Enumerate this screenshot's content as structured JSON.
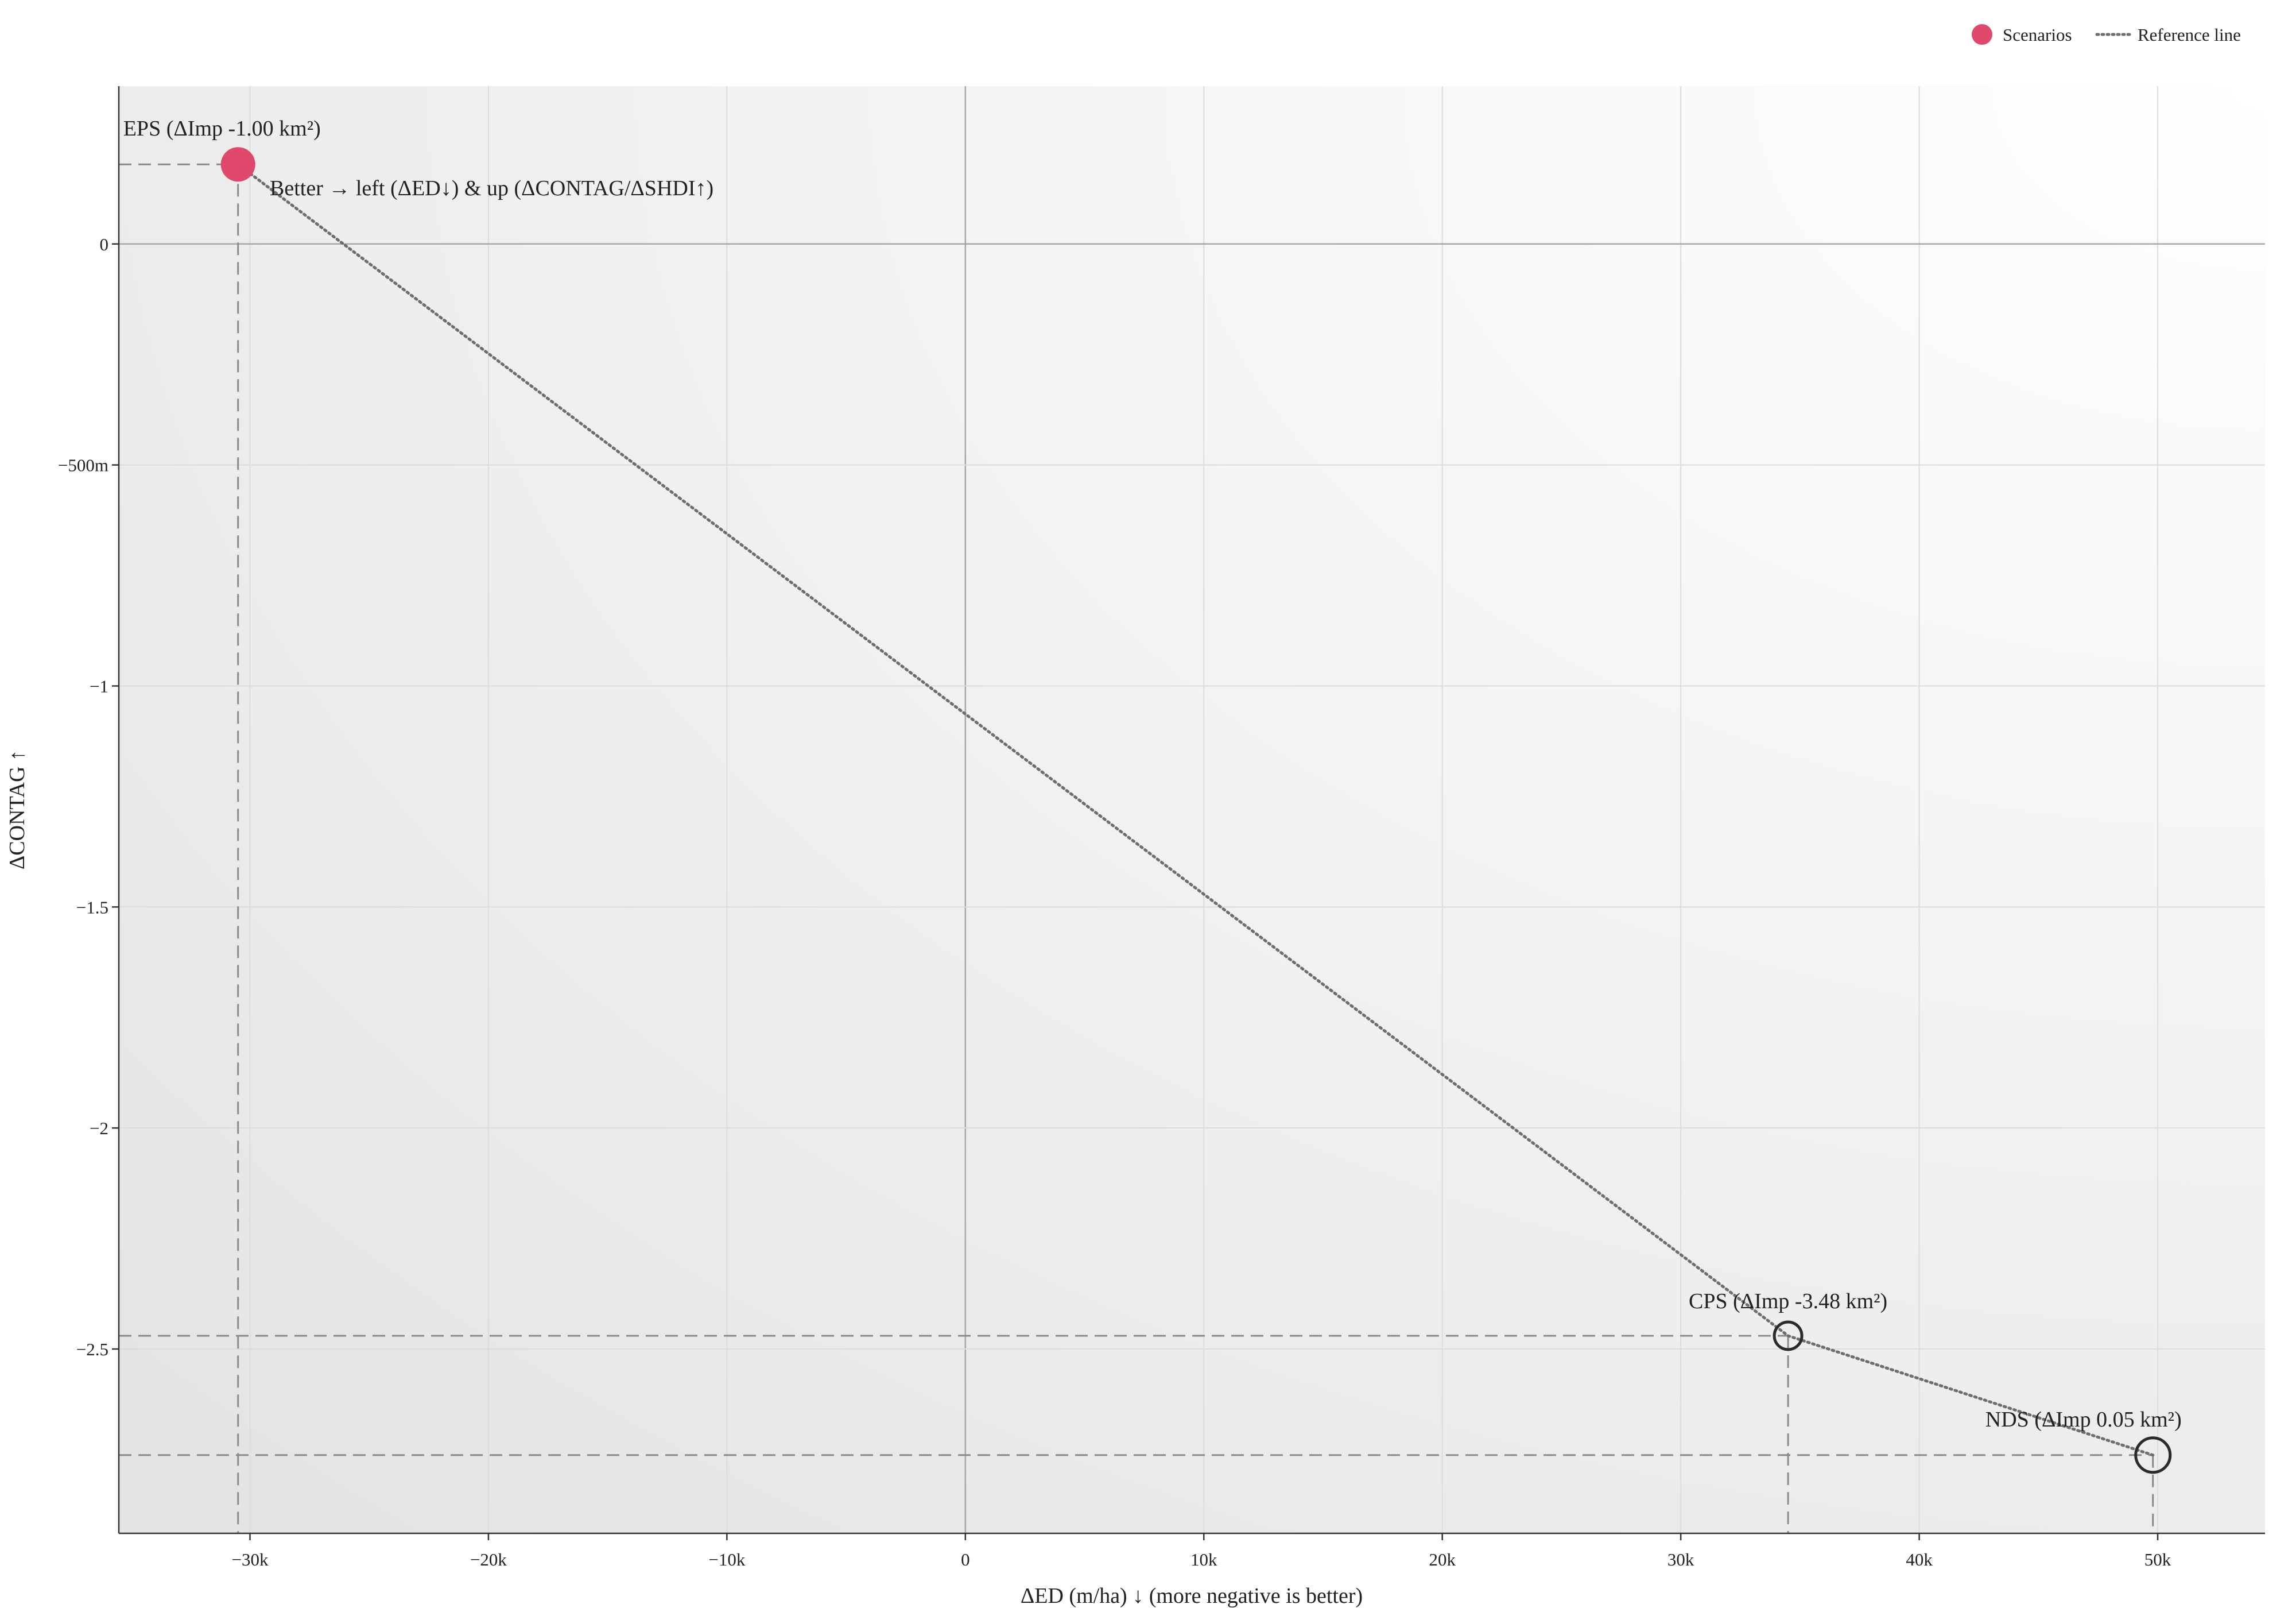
{
  "chart_data": {
    "type": "scatter",
    "xlabel": "ΔED (m/ha) ↓ (more negative is better)",
    "ylabel": "ΔCONTAG ↑",
    "xlim": [
      -35500,
      54500
    ],
    "ylim": [
      -2.917,
      0.357
    ],
    "x_ticks": [
      {
        "value": -30000,
        "label": "−30k"
      },
      {
        "value": -20000,
        "label": "−20k"
      },
      {
        "value": -10000,
        "label": "−10k"
      },
      {
        "value": 0,
        "label": "0"
      },
      {
        "value": 10000,
        "label": "10k"
      },
      {
        "value": 20000,
        "label": "20k"
      },
      {
        "value": 30000,
        "label": "30k"
      },
      {
        "value": 40000,
        "label": "40k"
      },
      {
        "value": 50000,
        "label": "50k"
      }
    ],
    "y_ticks": [
      {
        "value": 0,
        "label": "0"
      },
      {
        "value": -0.5,
        "label": "−500m"
      },
      {
        "value": -1,
        "label": "−1"
      },
      {
        "value": -1.5,
        "label": "−1.5"
      },
      {
        "value": -2,
        "label": "−2"
      },
      {
        "value": -2.5,
        "label": "−2.5"
      }
    ],
    "points": [
      {
        "name": "EPS",
        "label": "EPS (ΔImp -1.00 km²)",
        "x": -30500,
        "y": 0.18,
        "filled": true
      },
      {
        "name": "CPS",
        "label": "CPS (ΔImp -3.48 km²)",
        "x": 34500,
        "y": -2.47,
        "filled": false
      },
      {
        "name": "NDS",
        "label": "NDS (ΔImp 0.05 km²)",
        "x": 49800,
        "y": -2.74,
        "filled": false
      }
    ],
    "reference_line": {
      "x": [
        -30500,
        34500,
        49800
      ],
      "y": [
        0.18,
        -2.47,
        -2.74
      ]
    },
    "annotation": "Better → left (ΔED↓) & up (ΔCONTAG/ΔSHDI↑)",
    "legend": {
      "placement": "top-right",
      "items": [
        {
          "label": "Scenarios",
          "kind": "marker"
        },
        {
          "label": "Reference line",
          "kind": "dotted-line"
        }
      ]
    },
    "grid": true,
    "colors": {
      "scenario_fill": "#e0496c",
      "marker_outline": "#2b2b2b",
      "reference_line": "#6e6e6e"
    }
  }
}
